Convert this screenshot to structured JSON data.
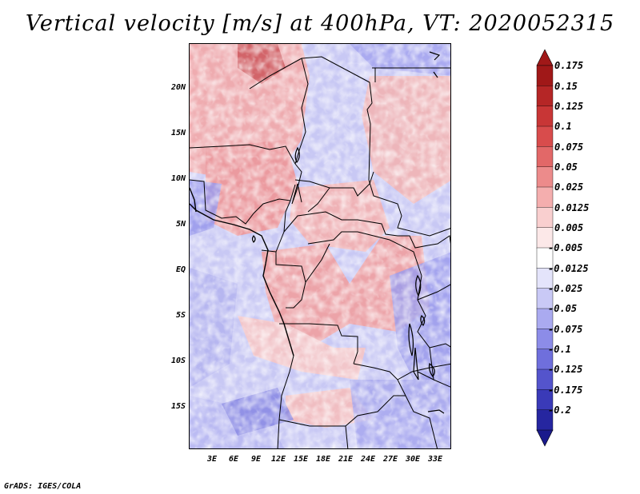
{
  "title": "Vertical velocity [m/s] at 400hPa, VT: 2020052315",
  "credit": "GrADS: IGES/COLA",
  "map": {
    "variable": "Vertical velocity",
    "units": "m/s",
    "level": "400hPa",
    "valid_time": "2020052315",
    "lat_ticks": [
      "20N",
      "15N",
      "10N",
      "5N",
      "EQ",
      "5S",
      "10S",
      "15S"
    ],
    "lon_ticks": [
      "3E",
      "6E",
      "9E",
      "12E",
      "15E",
      "18E",
      "21E",
      "24E",
      "27E",
      "30E",
      "33E"
    ]
  },
  "colorbar": {
    "levels": [
      {
        "label": "0.175",
        "color": "#a01818"
      },
      {
        "label": "0.15",
        "color": "#b52626"
      },
      {
        "label": "0.125",
        "color": "#c83636"
      },
      {
        "label": "0.1",
        "color": "#d84c4c"
      },
      {
        "label": "0.075",
        "color": "#e26868"
      },
      {
        "label": "0.05",
        "color": "#ec8b8b"
      },
      {
        "label": "0.025",
        "color": "#f4aeae"
      },
      {
        "label": "0.0125",
        "color": "#f9cfcf"
      },
      {
        "label": "0.005",
        "color": "#fce8e8"
      },
      {
        "label": "-0.005",
        "color": "#ffffff"
      },
      {
        "label": "-0.0125",
        "color": "#e4e4fb"
      },
      {
        "label": "-0.025",
        "color": "#c9c9f6"
      },
      {
        "label": "-0.05",
        "color": "#aaaaf0"
      },
      {
        "label": "-0.075",
        "color": "#8c8ce8"
      },
      {
        "label": "-0.1",
        "color": "#6f6fdc"
      },
      {
        "label": "-0.125",
        "color": "#5454cc"
      },
      {
        "label": "-0.175",
        "color": "#3a3ab8"
      },
      {
        "label": "-0.2",
        "color": "#2626a0"
      }
    ],
    "top_color": "#a01818",
    "bottom_color": "#1a1a8c"
  }
}
